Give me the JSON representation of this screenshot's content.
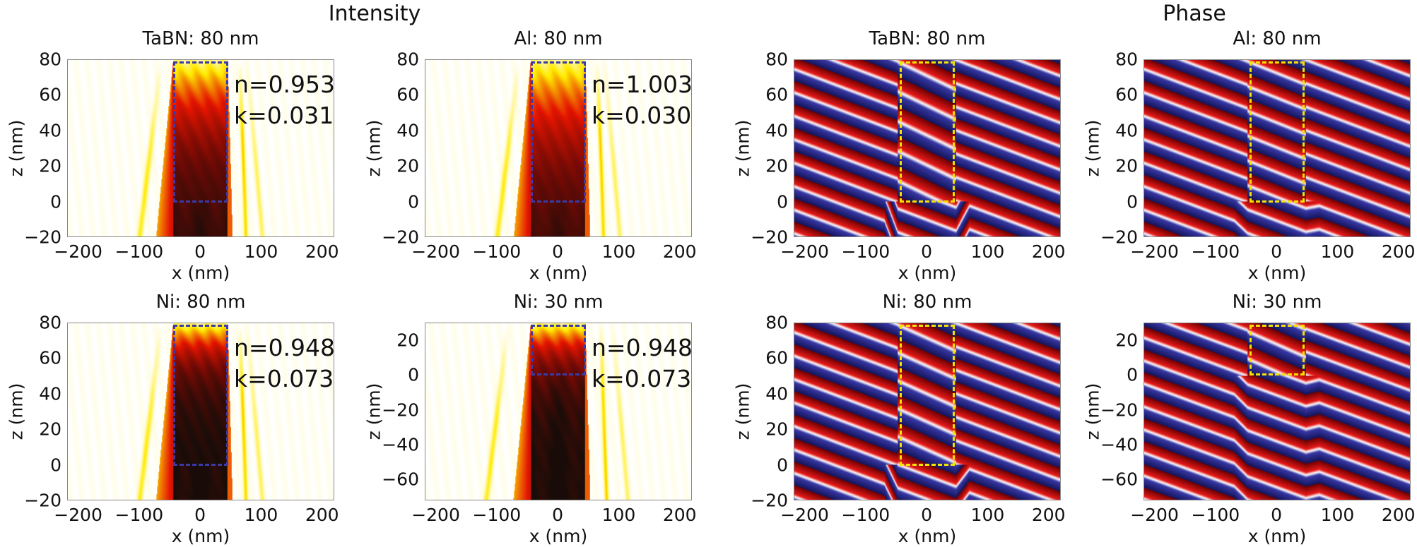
{
  "headers": {
    "intensity": "Intensity",
    "phase": "Phase"
  },
  "colors": {
    "intensity_box": "#3a3aa8",
    "phase_box": "#f5e400",
    "phase_red": "#e01414",
    "phase_blue": "#2a2a9a"
  },
  "chart_data": [
    {
      "type": "heatmap",
      "group": "intensity",
      "title": "TaBN: 80 nm",
      "xlabel": "x (nm)",
      "ylabel": "z (nm)",
      "xlim": [
        -218,
        220
      ],
      "ylim": [
        -20,
        80
      ],
      "xticks": [
        "−200",
        "−100",
        "0",
        "100",
        "200"
      ],
      "xtick_values": [
        -200,
        -100,
        0,
        100,
        200
      ],
      "yticks": [
        "80",
        "60",
        "40",
        "20",
        "0",
        "−20"
      ],
      "ytick_values": [
        80,
        60,
        40,
        20,
        0,
        -20
      ],
      "n": "n=0.953",
      "k": "k=0.031",
      "absorber_x": [
        -45,
        45
      ],
      "absorber_z": [
        0,
        80
      ],
      "colormap": "hot (reversed)"
    },
    {
      "type": "heatmap",
      "group": "intensity",
      "title": "Al: 80 nm",
      "xlabel": "x (nm)",
      "ylabel": "z (nm)",
      "xlim": [
        -218,
        220
      ],
      "ylim": [
        -20,
        80
      ],
      "xticks": [
        "−200",
        "−100",
        "0",
        "100",
        "200"
      ],
      "xtick_values": [
        -200,
        -100,
        0,
        100,
        200
      ],
      "yticks": [
        "80",
        "60",
        "40",
        "20",
        "0",
        "−20"
      ],
      "ytick_values": [
        80,
        60,
        40,
        20,
        0,
        -20
      ],
      "n": "n=1.003",
      "k": "k=0.030",
      "absorber_x": [
        -45,
        45
      ],
      "absorber_z": [
        0,
        80
      ],
      "colormap": "hot (reversed)"
    },
    {
      "type": "heatmap",
      "group": "phase",
      "title": "TaBN: 80 nm",
      "xlabel": "x (nm)",
      "ylabel": "z (nm)",
      "xlim": [
        -218,
        220
      ],
      "ylim": [
        -20,
        80
      ],
      "xticks": [
        "−200",
        "−100",
        "0",
        "100",
        "200"
      ],
      "xtick_values": [
        -200,
        -100,
        0,
        100,
        200
      ],
      "yticks": [
        "80",
        "60",
        "40",
        "20",
        "0",
        "−20"
      ],
      "ytick_values": [
        80,
        60,
        40,
        20,
        0,
        -20
      ],
      "absorber_x": [
        -45,
        45
      ],
      "absorber_z": [
        0,
        80
      ],
      "colormap": "blue-white-red"
    },
    {
      "type": "heatmap",
      "group": "phase",
      "title": "Al: 80 nm",
      "xlabel": "x (nm)",
      "ylabel": "z (nm)",
      "xlim": [
        -218,
        220
      ],
      "ylim": [
        -20,
        80
      ],
      "xticks": [
        "−200",
        "−100",
        "0",
        "100",
        "200"
      ],
      "xtick_values": [
        -200,
        -100,
        0,
        100,
        200
      ],
      "yticks": [
        "80",
        "60",
        "40",
        "20",
        "0",
        "−20"
      ],
      "ytick_values": [
        80,
        60,
        40,
        20,
        0,
        -20
      ],
      "absorber_x": [
        -45,
        45
      ],
      "absorber_z": [
        0,
        80
      ],
      "colormap": "blue-white-red"
    },
    {
      "type": "heatmap",
      "group": "intensity",
      "title": "Ni: 80 nm",
      "xlabel": "x (nm)",
      "ylabel": "z (nm)",
      "xlim": [
        -218,
        220
      ],
      "ylim": [
        -20,
        80
      ],
      "xticks": [
        "−200",
        "−100",
        "0",
        "100",
        "200"
      ],
      "xtick_values": [
        -200,
        -100,
        0,
        100,
        200
      ],
      "yticks": [
        "80",
        "60",
        "40",
        "20",
        "0",
        "−20"
      ],
      "ytick_values": [
        80,
        60,
        40,
        20,
        0,
        -20
      ],
      "n": "n=0.948",
      "k": "k=0.073",
      "absorber_x": [
        -45,
        45
      ],
      "absorber_z": [
        0,
        80
      ],
      "colormap": "hot (reversed)"
    },
    {
      "type": "heatmap",
      "group": "intensity",
      "title": "Ni: 30 nm",
      "xlabel": "x (nm)",
      "ylabel": "z (nm)",
      "xlim": [
        -218,
        220
      ],
      "ylim": [
        -72,
        30
      ],
      "xticks": [
        "−200",
        "−100",
        "0",
        "100",
        "200"
      ],
      "xtick_values": [
        -200,
        -100,
        0,
        100,
        200
      ],
      "yticks": [
        "20",
        "0",
        "−20",
        "−40",
        "−60"
      ],
      "ytick_values": [
        20,
        0,
        -20,
        -40,
        -60
      ],
      "n": "n=0.948",
      "k": "k=0.073",
      "absorber_x": [
        -45,
        45
      ],
      "absorber_z": [
        0,
        30
      ],
      "colormap": "hot (reversed)"
    },
    {
      "type": "heatmap",
      "group": "phase",
      "title": "Ni: 80 nm",
      "xlabel": "x (nm)",
      "ylabel": "z (nm)",
      "xlim": [
        -218,
        220
      ],
      "ylim": [
        -20,
        80
      ],
      "xticks": [
        "−200",
        "−100",
        "0",
        "100",
        "200"
      ],
      "xtick_values": [
        -200,
        -100,
        0,
        100,
        200
      ],
      "yticks": [
        "80",
        "60",
        "40",
        "20",
        "0",
        "−20"
      ],
      "ytick_values": [
        80,
        60,
        40,
        20,
        0,
        -20
      ],
      "absorber_x": [
        -45,
        45
      ],
      "absorber_z": [
        0,
        80
      ],
      "colormap": "blue-white-red"
    },
    {
      "type": "heatmap",
      "group": "phase",
      "title": "Ni: 30 nm",
      "xlabel": "x (nm)",
      "ylabel": "z (nm)",
      "xlim": [
        -218,
        220
      ],
      "ylim": [
        -72,
        30
      ],
      "xticks": [
        "−200",
        "−100",
        "0",
        "100",
        "200"
      ],
      "xtick_values": [
        -200,
        -100,
        0,
        100,
        200
      ],
      "yticks": [
        "20",
        "0",
        "−20",
        "−40",
        "−60"
      ],
      "ytick_values": [
        20,
        0,
        -20,
        -40,
        -60
      ],
      "absorber_x": [
        -45,
        45
      ],
      "absorber_z": [
        0,
        30
      ],
      "colormap": "blue-white-red"
    }
  ]
}
